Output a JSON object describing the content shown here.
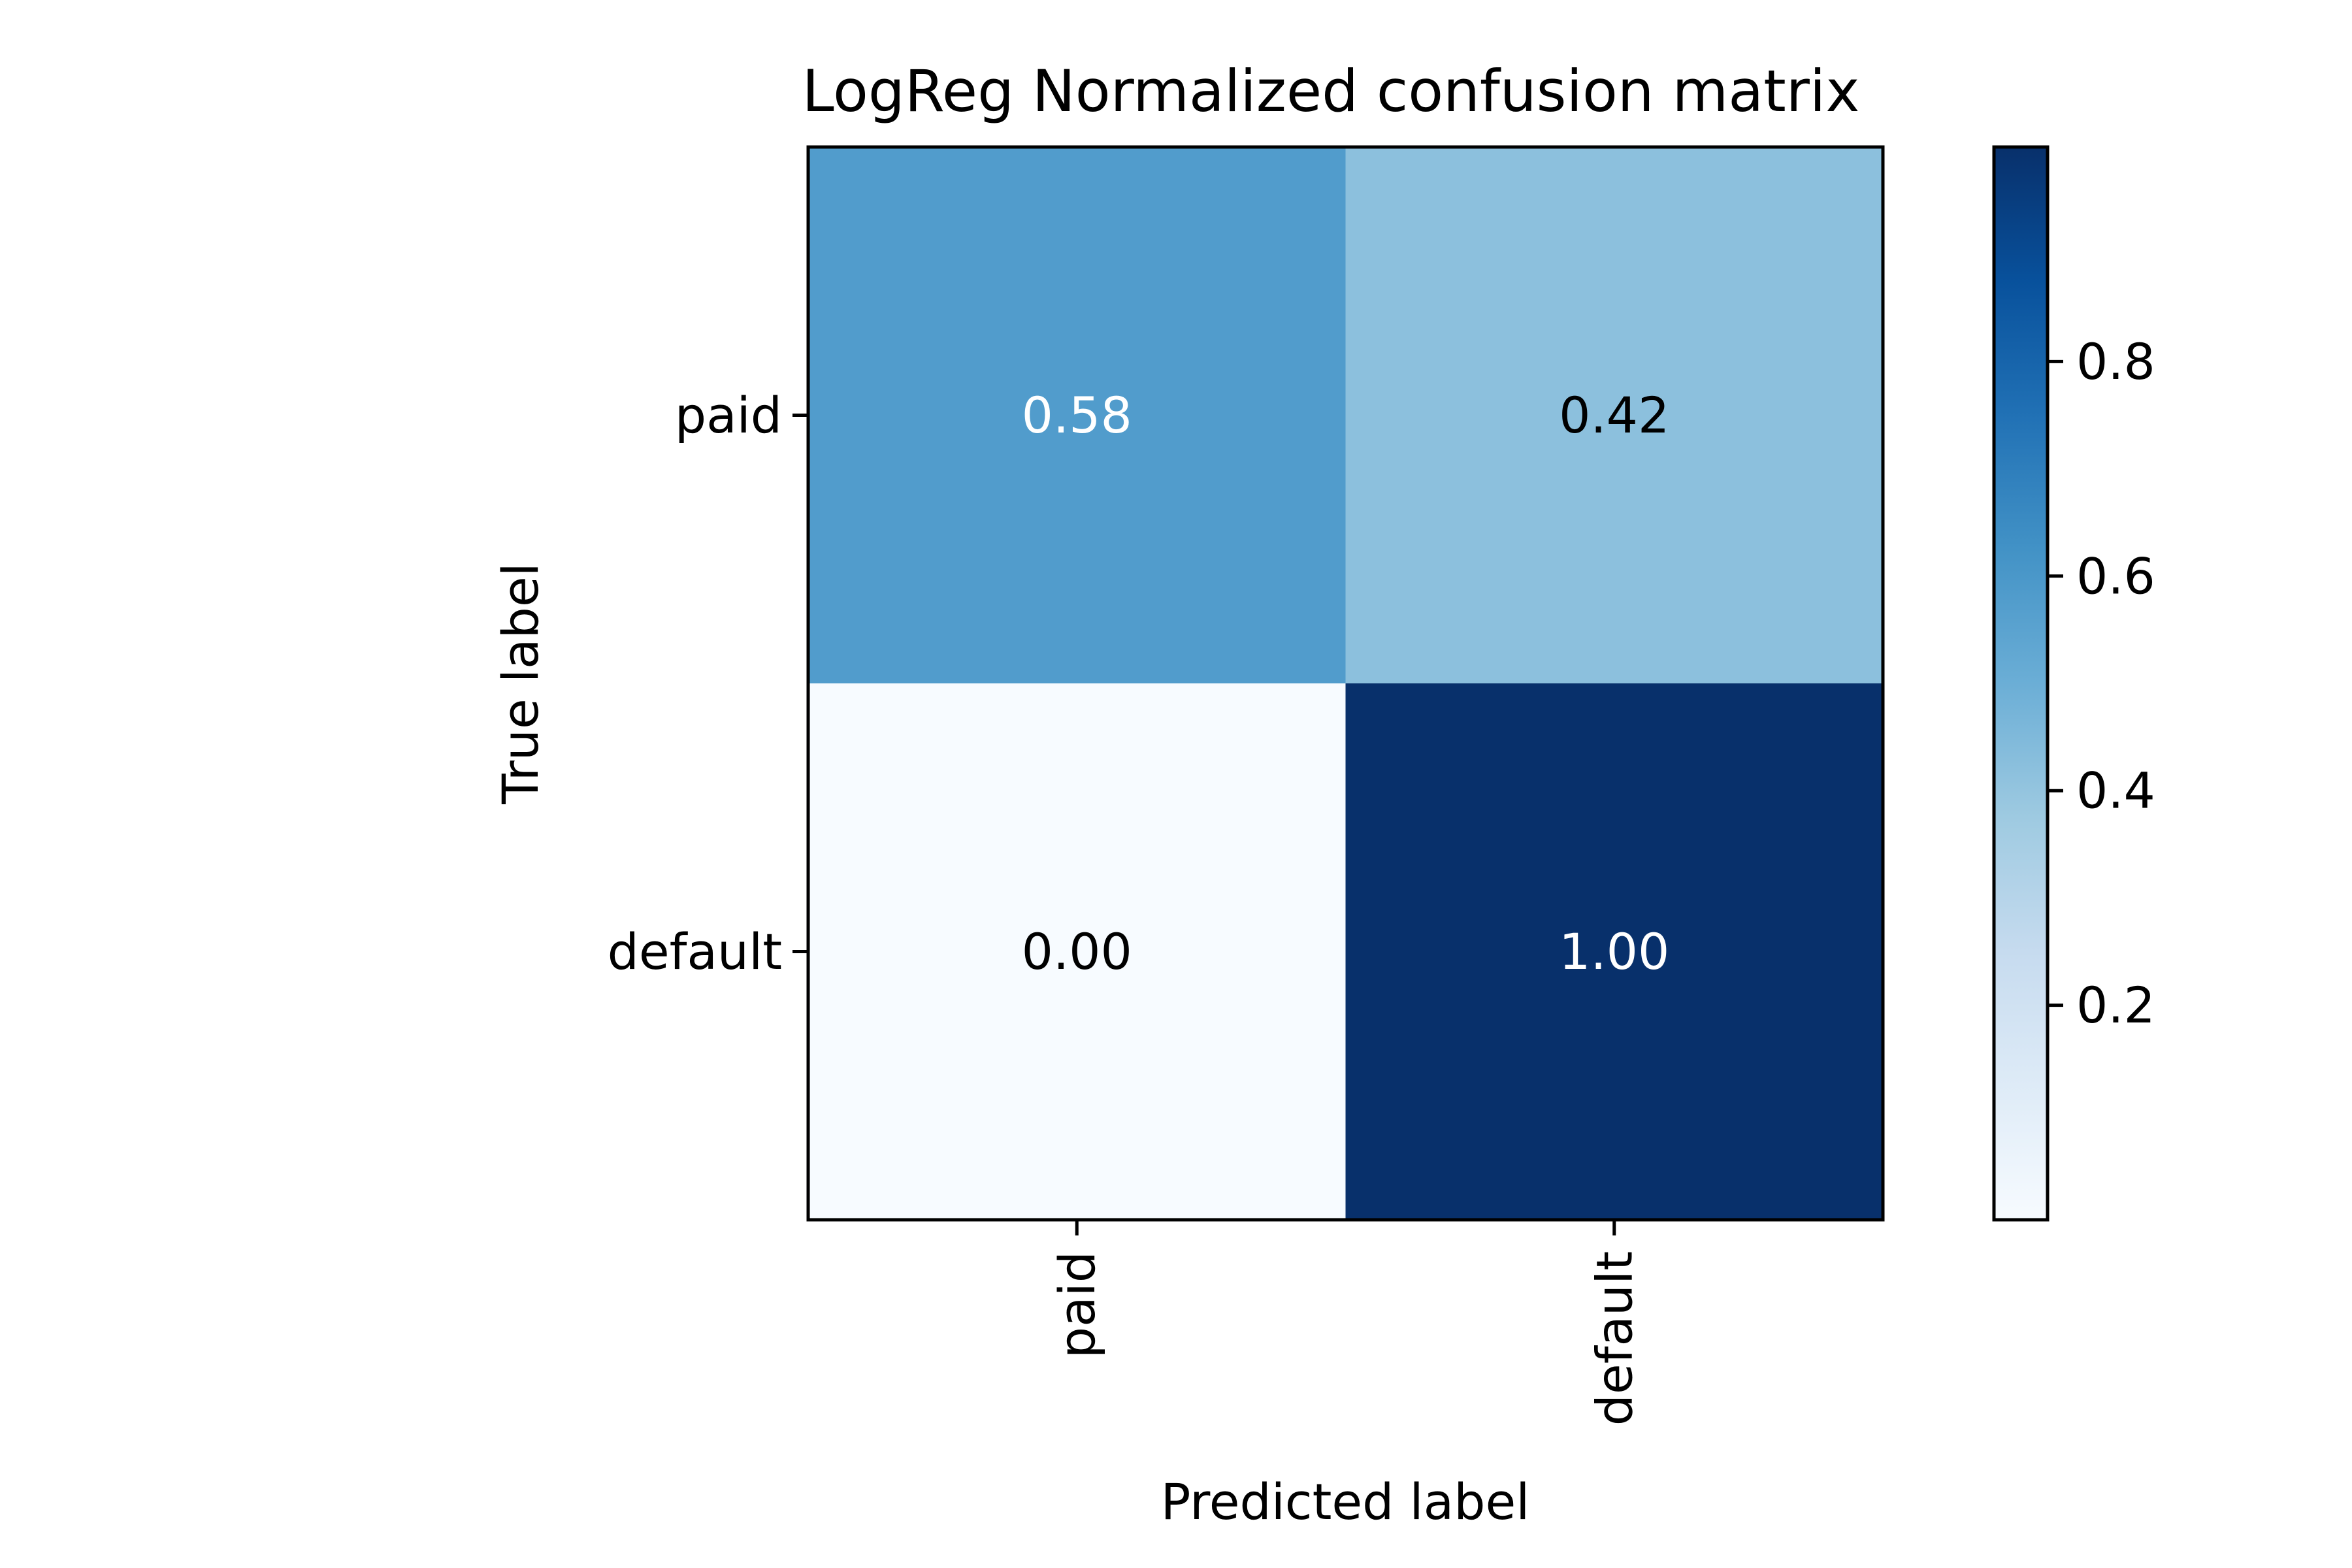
{
  "chart_data": {
    "type": "heatmap",
    "title": "LogReg Normalized confusion matrix",
    "xlabel": "Predicted label",
    "ylabel": "True label",
    "x_categories": [
      "paid",
      "default"
    ],
    "y_categories": [
      "paid",
      "default"
    ],
    "values": [
      [
        0.58,
        0.42
      ],
      [
        0.0,
        1.0
      ]
    ],
    "value_labels": [
      [
        "0.58",
        "0.42"
      ],
      [
        "0.00",
        "1.00"
      ]
    ],
    "colormap": "Blues",
    "color_range": [
      0.0,
      1.0
    ],
    "colorbar": {
      "ticks": [
        0.2,
        0.4,
        0.6,
        0.8
      ],
      "tick_labels": [
        "0.2",
        "0.4",
        "0.6",
        "0.8"
      ],
      "range": [
        0.0,
        1.0
      ]
    },
    "legend": false,
    "grid": false
  }
}
